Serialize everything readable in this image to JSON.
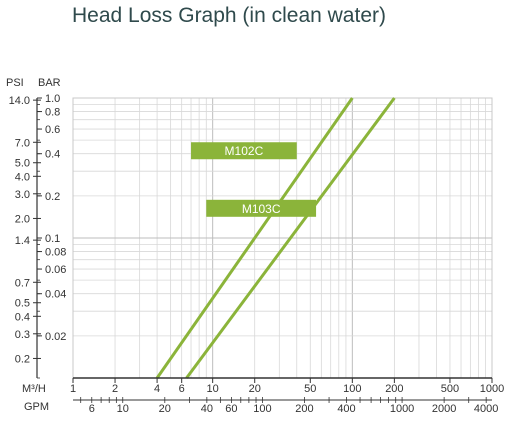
{
  "chart_data": {
    "type": "line",
    "title": "Head Loss Graph (in clean water)",
    "scale": "log-log",
    "grid": true,
    "y_axis_left": {
      "label": "PSI",
      "range": [
        0.1453,
        14.5
      ],
      "ticks": [
        "14.0",
        "7.0",
        "5.0",
        "4.0",
        "3.0",
        "2.0",
        "1.4",
        "0.7",
        "0.5",
        "0.4",
        "0.3",
        "0.2"
      ],
      "tick_values": [
        14.0,
        7.0,
        5.0,
        4.0,
        3.0,
        2.0,
        1.4,
        0.7,
        0.5,
        0.4,
        0.3,
        0.2
      ]
    },
    "y_axis_right": {
      "label": "BAR",
      "range": [
        0.01,
        1.0
      ],
      "ticks": [
        "1.0",
        "0.8",
        "0.6",
        "0.4",
        "0.2",
        "0.1",
        "0.08",
        "0.06",
        "0.04",
        "0.02"
      ],
      "tick_values": [
        1.0,
        0.8,
        0.6,
        0.4,
        0.2,
        0.1,
        0.08,
        0.06,
        0.04,
        0.02
      ]
    },
    "x_axis_top": {
      "label": "M³/H",
      "range": [
        1,
        1000
      ],
      "ticks": [
        "1",
        "2",
        "4",
        "6",
        "10",
        "20",
        "50",
        "100",
        "200",
        "500",
        "1000"
      ],
      "tick_values": [
        1,
        2,
        4,
        6,
        10,
        20,
        50,
        100,
        200,
        500,
        1000
      ]
    },
    "x_axis_bottom": {
      "label": "GPM",
      "ticks": [
        "6",
        "10",
        "20",
        "40",
        "60",
        "100",
        "200",
        "400",
        "1000",
        "2000",
        "4000"
      ],
      "tick_values": [
        6,
        10,
        20,
        40,
        60,
        100,
        200,
        400,
        1000,
        2000,
        4000
      ]
    },
    "series": [
      {
        "name": "M102C",
        "color": "#8bb43a",
        "points": [
          {
            "x": 4.0,
            "y": 0.01
          },
          {
            "x": 100,
            "y": 1.0
          }
        ]
      },
      {
        "name": "M103C",
        "color": "#8bb43a",
        "points": [
          {
            "x": 6.5,
            "y": 0.01
          },
          {
            "x": 200,
            "y": 1.0
          }
        ]
      }
    ],
    "labels": [
      {
        "text": "M102C",
        "at_x": [
          7,
          40
        ],
        "at_y": 0.42
      },
      {
        "text": "M103C",
        "at_x": [
          9,
          55
        ],
        "at_y": 0.163
      }
    ]
  }
}
